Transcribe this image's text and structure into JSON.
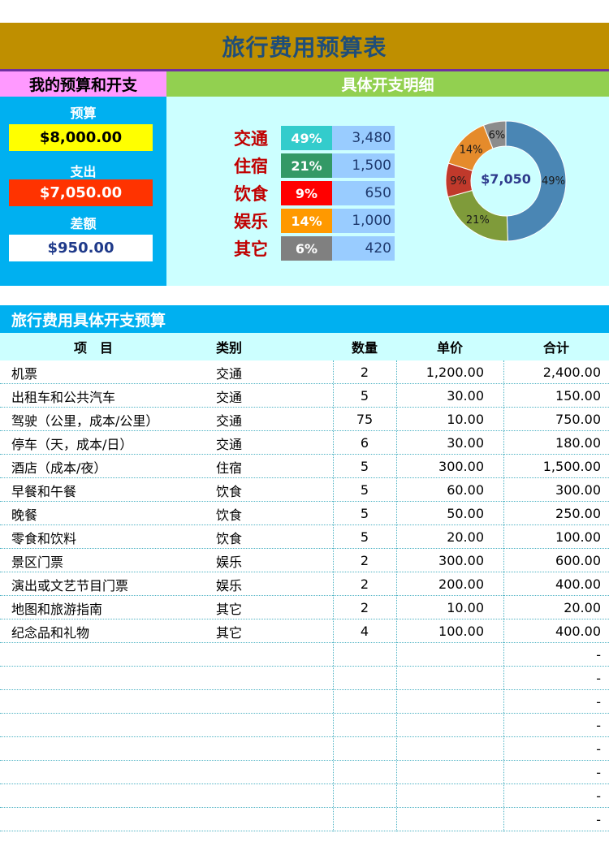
{
  "title": "旅行费用预算表",
  "budget_panel": {
    "header": "我的预算和开支",
    "budget_label": "预算",
    "budget_value": "$8,000.00",
    "expense_label": "支出",
    "expense_value": "$7,050.00",
    "diff_label": "差额",
    "diff_value": "$950.00"
  },
  "detail_panel": {
    "header": "具体开支明细",
    "categories": [
      {
        "name": "交通",
        "percent": "49%",
        "amount": "3,480",
        "color": "#33cccc"
      },
      {
        "name": "住宿",
        "percent": "21%",
        "amount": "1,500",
        "color": "#339966"
      },
      {
        "name": "饮食",
        "percent": "9%",
        "amount": "650",
        "color": "#ff0000"
      },
      {
        "name": "娱乐",
        "percent": "14%",
        "amount": "1,000",
        "color": "#ff9900"
      },
      {
        "name": "其它",
        "percent": "6%",
        "amount": "420",
        "color": "#808080"
      }
    ]
  },
  "chart_data": {
    "type": "pie",
    "center_label": "$7,050",
    "slices": [
      {
        "label": "49%",
        "value": 49,
        "color": "#4a86b4"
      },
      {
        "label": "21%",
        "value": 21,
        "color": "#7f9b3a"
      },
      {
        "label": "9%",
        "value": 9,
        "color": "#c0392b"
      },
      {
        "label": "14%",
        "value": 14,
        "color": "#e58b2b"
      },
      {
        "label": "6%",
        "value": 6,
        "color": "#8c8c8c"
      }
    ]
  },
  "table": {
    "section_title": "旅行费用具体开支预算",
    "headers": [
      "项　目",
      "类别",
      "数量",
      "单价",
      "合计"
    ],
    "rows": [
      [
        "机票",
        "交通",
        "2",
        "1,200.00",
        "2,400.00"
      ],
      [
        "出租车和公共汽车",
        "交通",
        "5",
        "30.00",
        "150.00"
      ],
      [
        "驾驶（公里，成本/公里）",
        "交通",
        "75",
        "10.00",
        "750.00"
      ],
      [
        "停车（天，成本/日）",
        "交通",
        "6",
        "30.00",
        "180.00"
      ],
      [
        "酒店（成本/夜）",
        "住宿",
        "5",
        "300.00",
        "1,500.00"
      ],
      [
        "早餐和午餐",
        "饮食",
        "5",
        "60.00",
        "300.00"
      ],
      [
        "晚餐",
        "饮食",
        "5",
        "50.00",
        "250.00"
      ],
      [
        "零食和饮料",
        "饮食",
        "5",
        "20.00",
        "100.00"
      ],
      [
        "景区门票",
        "娱乐",
        "2",
        "300.00",
        "600.00"
      ],
      [
        "演出或文艺节目门票",
        "娱乐",
        "2",
        "200.00",
        "400.00"
      ],
      [
        "地图和旅游指南",
        "其它",
        "2",
        "10.00",
        "20.00"
      ],
      [
        "纪念品和礼物",
        "其它",
        "4",
        "100.00",
        "400.00"
      ],
      [
        "",
        "",
        "",
        "",
        "-"
      ],
      [
        "",
        "",
        "",
        "",
        "-"
      ],
      [
        "",
        "",
        "",
        "",
        "-"
      ],
      [
        "",
        "",
        "",
        "",
        "-"
      ],
      [
        "",
        "",
        "",
        "",
        "-"
      ],
      [
        "",
        "",
        "",
        "",
        "-"
      ],
      [
        "",
        "",
        "",
        "",
        "-"
      ],
      [
        "",
        "",
        "",
        "",
        "-"
      ]
    ]
  }
}
